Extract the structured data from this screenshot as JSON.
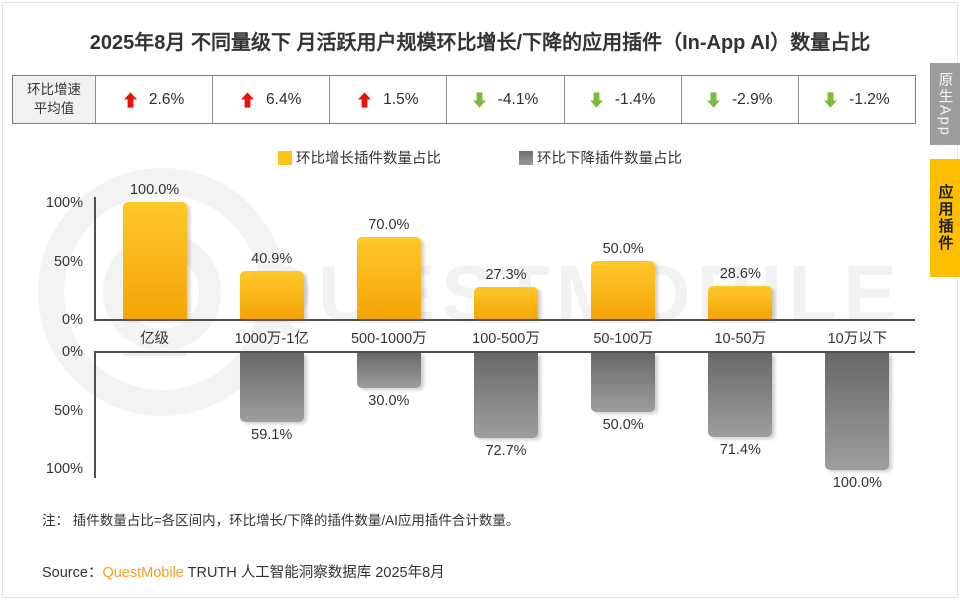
{
  "title": "2025年8月 不同量级下 月活跃用户规模环比增长/下降的应用插件（In-App AI）数量占比",
  "stats": {
    "header_line1": "环比增速",
    "header_line2": "平均值",
    "up_color": "#e8120c",
    "down_color": "#7bbb3c",
    "cells": [
      {
        "direction": "up",
        "value": "2.6%"
      },
      {
        "direction": "up",
        "value": "6.4%"
      },
      {
        "direction": "up",
        "value": "1.5%"
      },
      {
        "direction": "down",
        "value": "-4.1%"
      },
      {
        "direction": "down",
        "value": "-1.4%"
      },
      {
        "direction": "down",
        "value": "-2.9%"
      },
      {
        "direction": "down",
        "value": "-1.2%"
      }
    ]
  },
  "legend": [
    {
      "label": "环比增长插件数量占比",
      "color": "#ffc11e"
    },
    {
      "label": "环比下降插件数量占比",
      "color": "#6e6e6e",
      "color2": "#9a9a9a"
    }
  ],
  "chart_data": {
    "type": "bar",
    "title": "2025年8月 不同量级下 月活跃用户规模环比增长/下降的应用插件（In-App AI）数量占比",
    "categories": [
      "亿级",
      "1000万-1亿",
      "500-1000万",
      "100-500万",
      "50-100万",
      "10-50万",
      "10万以下"
    ],
    "series": [
      {
        "name": "环比增长插件数量占比",
        "color": "#ffb900",
        "values": [
          100.0,
          40.9,
          70.0,
          27.3,
          50.0,
          28.6,
          0.0
        ],
        "labels": [
          "100.0%",
          "40.9%",
          "70.0%",
          "27.3%",
          "50.0%",
          "28.6%",
          ""
        ]
      },
      {
        "name": "环比下降插件数量占比",
        "color": "#808080",
        "values": [
          0.0,
          59.1,
          30.0,
          72.7,
          50.0,
          71.4,
          100.0
        ],
        "labels": [
          "",
          "59.1%",
          "30.0%",
          "72.7%",
          "50.0%",
          "71.4%",
          "100.0%"
        ]
      }
    ],
    "avg_growth_rate": [
      "2.6%",
      "6.4%",
      "1.5%",
      "-4.1%",
      "-1.4%",
      "-2.9%",
      "-1.2%"
    ],
    "y_axis_top": {
      "ticks": [
        {
          "label": "100%",
          "v": 100
        },
        {
          "label": "50%",
          "v": 50
        },
        {
          "label": "0%",
          "v": 0
        }
      ],
      "range": [
        0,
        100
      ]
    },
    "y_axis_bottom": {
      "ticks": [
        {
          "label": "0%",
          "v": 0
        },
        {
          "label": "50%",
          "v": 50
        },
        {
          "label": "100%",
          "v": 100
        }
      ],
      "range": [
        0,
        100
      ]
    },
    "grid": false,
    "legend_position": "top"
  },
  "note": "注： 插件数量占比=各区间内，环比增长/下降的插件数量/AI应用插件合计数量。",
  "source": {
    "prefix": "Source：",
    "brand": "QuestMobile",
    "suffix": " TRUTH 人工智能洞察数据库 2025年8月",
    "brand_color": "#f89f1d"
  },
  "sidebar_tabs": [
    {
      "label": "原生App",
      "active": false
    },
    {
      "label": "应用插件",
      "active": true
    }
  ],
  "watermark": "QUESTMOBILE"
}
